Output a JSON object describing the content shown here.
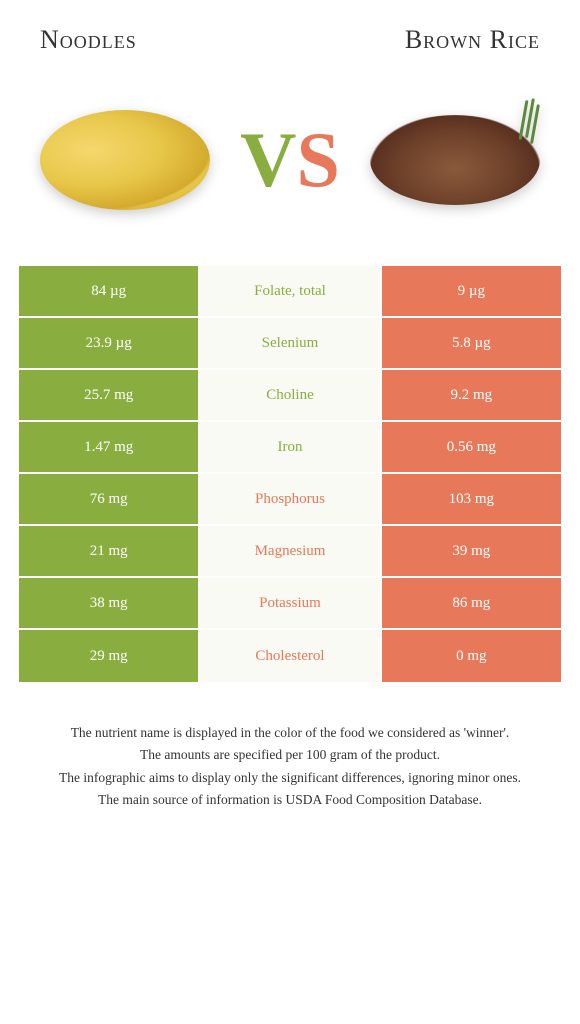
{
  "header": {
    "left": "Noodles",
    "right": "Brown Rice"
  },
  "vs": {
    "v": "V",
    "s": "S"
  },
  "colors": {
    "green": "#8aad3f",
    "orange": "#e8785a",
    "mid_bg": "#f9faf3",
    "white": "#ffffff"
  },
  "rows": [
    {
      "left": "84 µg",
      "label": "Folate, total",
      "right": "9 µg",
      "winner": "left"
    },
    {
      "left": "23.9 µg",
      "label": "Selenium",
      "right": "5.8 µg",
      "winner": "left"
    },
    {
      "left": "25.7 mg",
      "label": "Choline",
      "right": "9.2 mg",
      "winner": "left"
    },
    {
      "left": "1.47 mg",
      "label": "Iron",
      "right": "0.56 mg",
      "winner": "left"
    },
    {
      "left": "76 mg",
      "label": "Phosphorus",
      "right": "103 mg",
      "winner": "right"
    },
    {
      "left": "21 mg",
      "label": "Magnesium",
      "right": "39 mg",
      "winner": "right"
    },
    {
      "left": "38 mg",
      "label": "Potassium",
      "right": "86 mg",
      "winner": "right"
    },
    {
      "left": "29 mg",
      "label": "Cholesterol",
      "right": "0 mg",
      "winner": "right"
    }
  ],
  "footer": {
    "l1": "The nutrient name is displayed in the color of the food we considered as 'winner'.",
    "l2": "The amounts are specified per 100 gram of the product.",
    "l3": "The infographic aims to display only the significant differences, ignoring minor ones.",
    "l4": "The main source of information is USDA Food Composition Database."
  }
}
